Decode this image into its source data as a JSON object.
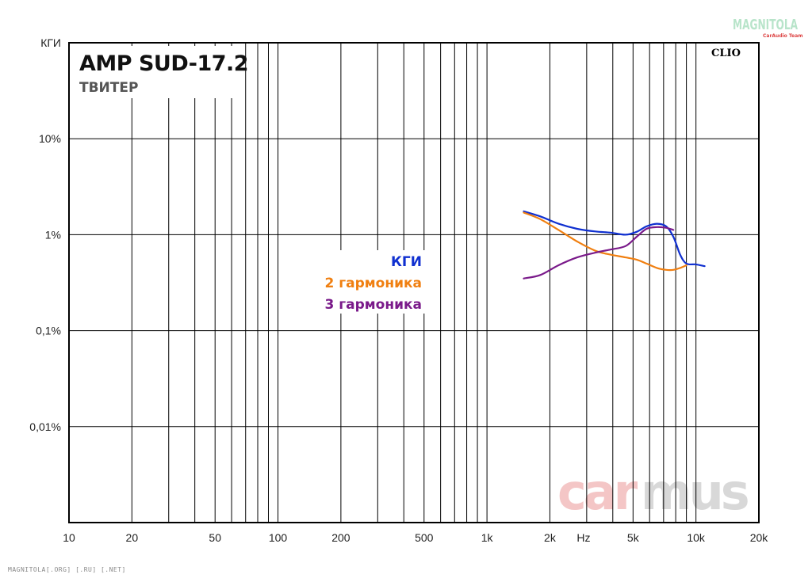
{
  "chart_data": {
    "type": "line",
    "title": "AMP SUD-17.2",
    "subtitle": "ТВИТЕР",
    "xlabel": "Hz",
    "ylabel": "КГИ",
    "x_scale": "log",
    "y_scale": "log",
    "xlim": [
      10,
      20000
    ],
    "ylim": [
      0.001,
      100
    ],
    "grid": true,
    "x_ticks": [
      {
        "value": 10,
        "label": "10"
      },
      {
        "value": 20,
        "label": "20"
      },
      {
        "value": 50,
        "label": "50"
      },
      {
        "value": 100,
        "label": "100"
      },
      {
        "value": 200,
        "label": "200"
      },
      {
        "value": 500,
        "label": "500"
      },
      {
        "value": 1000,
        "label": "1k"
      },
      {
        "value": 2000,
        "label": "2k"
      },
      {
        "value": 5000,
        "label": "5k"
      },
      {
        "value": 10000,
        "label": "10k"
      },
      {
        "value": 20000,
        "label": "20k"
      }
    ],
    "y_ticks": [
      {
        "value": 100,
        "label": "КГИ"
      },
      {
        "value": 10,
        "label": "10%"
      },
      {
        "value": 1,
        "label": "1%"
      },
      {
        "value": 0.1,
        "label": "0,1%"
      },
      {
        "value": 0.01,
        "label": "0,01%"
      }
    ],
    "legend_position": "center",
    "series": [
      {
        "name": "КГИ",
        "color": "#1030d0",
        "x": [
          1500,
          1800,
          2200,
          2700,
          3300,
          3900,
          4600,
          5200,
          5800,
          6500,
          7200,
          7800,
          8400,
          9000,
          10000,
          11000
        ],
        "y": [
          1.75,
          1.55,
          1.3,
          1.15,
          1.08,
          1.05,
          1.0,
          1.07,
          1.22,
          1.3,
          1.22,
          0.95,
          0.62,
          0.5,
          0.49,
          0.47
        ]
      },
      {
        "name": "2 гармоника",
        "color": "#f07f10",
        "x": [
          1500,
          1800,
          2200,
          2700,
          3300,
          3900,
          4600,
          5200,
          5800,
          6500,
          7200,
          7800,
          8400,
          9000
        ],
        "y": [
          1.7,
          1.45,
          1.12,
          0.85,
          0.68,
          0.62,
          0.58,
          0.55,
          0.5,
          0.45,
          0.43,
          0.43,
          0.45,
          0.48
        ]
      },
      {
        "name": "3 гармоника",
        "color": "#7a1a8a",
        "x": [
          1500,
          1800,
          2200,
          2700,
          3300,
          3900,
          4600,
          5200,
          5800,
          6500,
          7200,
          7800
        ],
        "y": [
          0.35,
          0.38,
          0.48,
          0.58,
          0.65,
          0.7,
          0.76,
          0.95,
          1.15,
          1.2,
          1.18,
          1.12
        ]
      }
    ]
  },
  "brand": {
    "clio": "CLIO",
    "watermark_carmus_a": "car",
    "watermark_carmus_b": "mus",
    "watermark_magnitola": "MAGNITOLA",
    "watermark_magnitola_sub": "CarAudio Team"
  },
  "footer": "MAGNITOLA[.ORG] [.RU] [.NET]"
}
